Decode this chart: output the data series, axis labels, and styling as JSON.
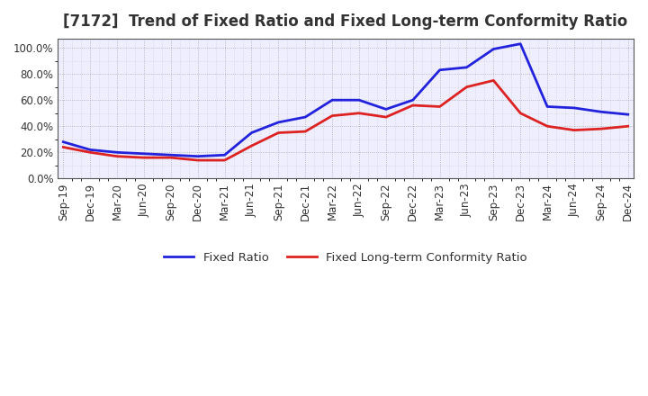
{
  "title": "[7172]  Trend of Fixed Ratio and Fixed Long-term Conformity Ratio",
  "x_labels": [
    "Sep-19",
    "Dec-19",
    "Mar-20",
    "Jun-20",
    "Sep-20",
    "Dec-20",
    "Mar-21",
    "Jun-21",
    "Sep-21",
    "Dec-21",
    "Mar-22",
    "Jun-22",
    "Sep-22",
    "Dec-22",
    "Mar-23",
    "Jun-23",
    "Sep-23",
    "Dec-23",
    "Mar-24",
    "Jun-24",
    "Sep-24",
    "Dec-24"
  ],
  "fixed_ratio": [
    28.0,
    22.0,
    20.0,
    19.0,
    18.0,
    17.0,
    18.0,
    35.0,
    43.0,
    47.0,
    60.0,
    60.0,
    53.0,
    60.0,
    83.0,
    85.0,
    99.0,
    103.0,
    55.0,
    54.0,
    51.0,
    49.0
  ],
  "fixed_lt_ratio": [
    24.0,
    20.0,
    17.0,
    16.0,
    16.0,
    14.0,
    14.0,
    25.0,
    35.0,
    36.0,
    48.0,
    50.0,
    47.0,
    56.0,
    55.0,
    70.0,
    75.0,
    50.0,
    40.0,
    37.0,
    38.0,
    40.0
  ],
  "fixed_ratio_color": "#2222DD",
  "fixed_lt_ratio_color": "#DD2222",
  "ylim": [
    0,
    107
  ],
  "yticks": [
    0,
    20,
    40,
    60,
    80,
    100
  ],
  "plot_bg_color": "#EEEEFF",
  "fig_bg_color": "#FFFFFF",
  "grid_color": "#999999",
  "legend_fixed": "Fixed Ratio",
  "legend_fixed_lt": "Fixed Long-term Conformity Ratio",
  "linewidth": 2.0,
  "title_fontsize": 12,
  "tick_fontsize": 8.5,
  "legend_fontsize": 9.5
}
